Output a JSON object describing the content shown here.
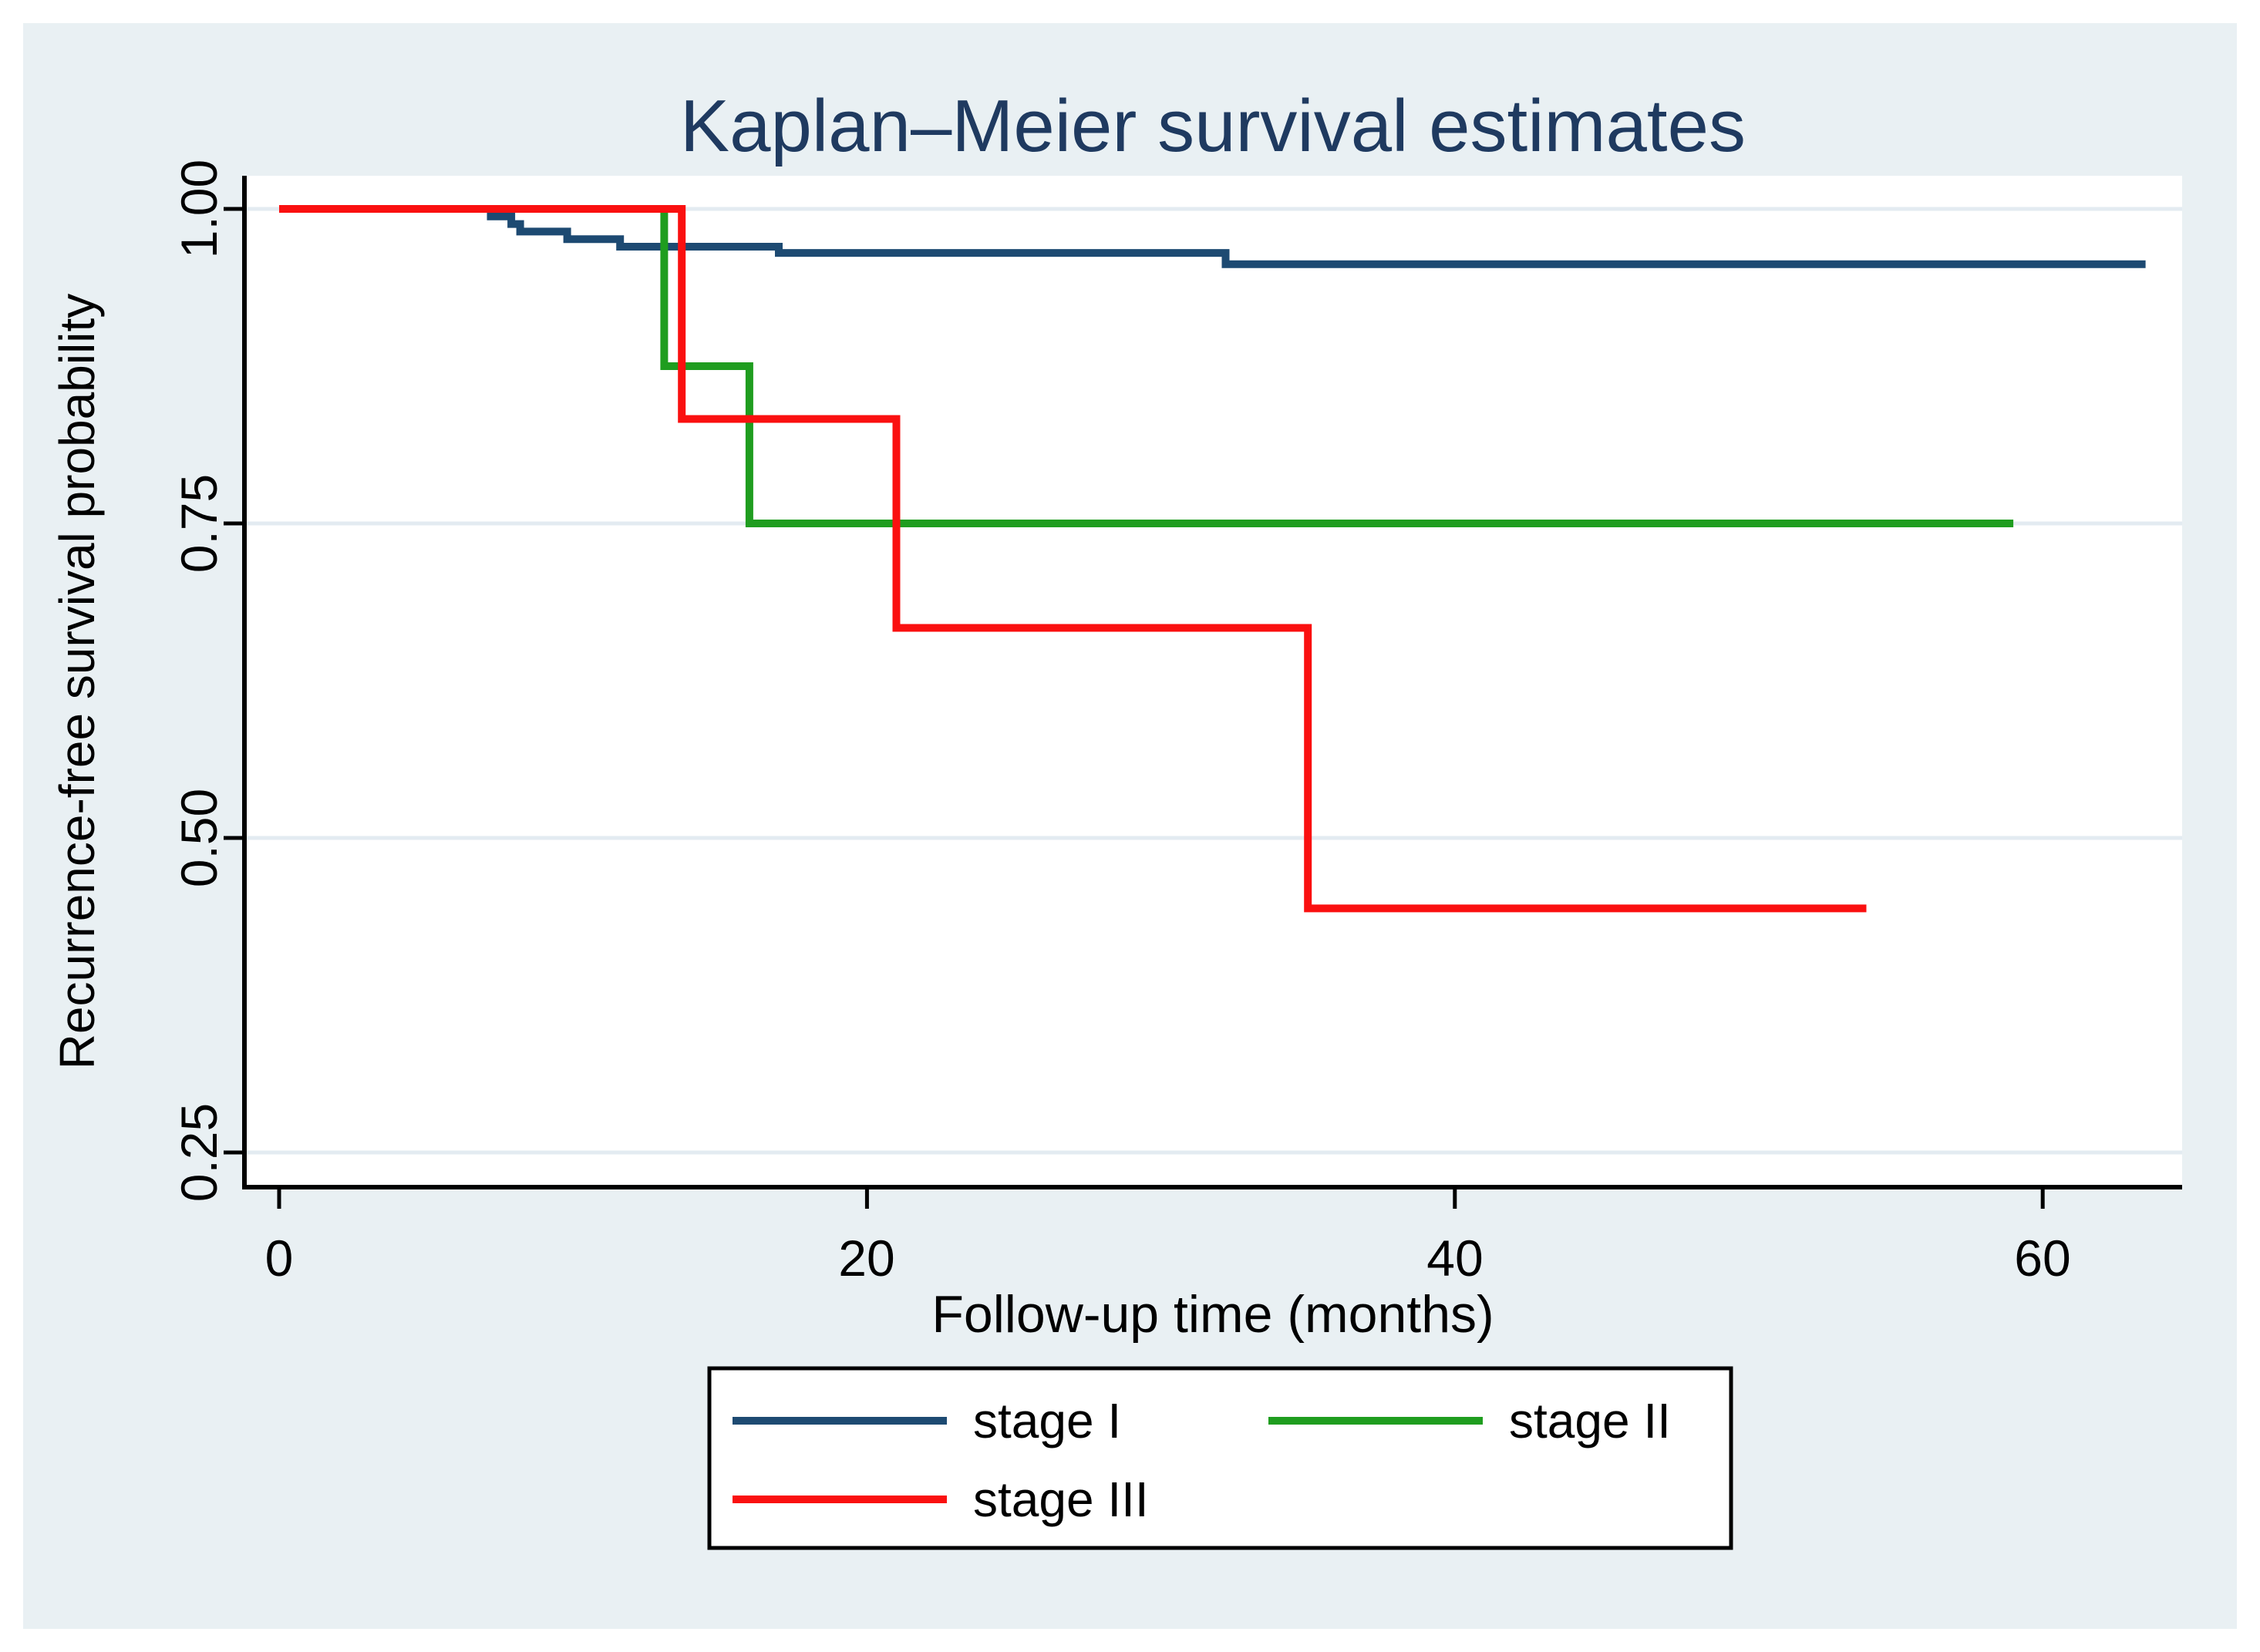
{
  "figure": {
    "background": "#e9f0f3",
    "outer_margin": "#ffffff",
    "plot_background": "#ffffff",
    "grid_color": "#e3ebf1",
    "axis_color": "#000000"
  },
  "title": {
    "text": "Kaplan–Meier survival estimates",
    "color": "#1f3a60"
  },
  "axes": {
    "x": {
      "label": "Follow-up time (months)",
      "ticks": [
        "0",
        "20",
        "40",
        "60"
      ],
      "tick_values": [
        0,
        20,
        40,
        60
      ],
      "range_shown": [
        0,
        64.7
      ]
    },
    "y": {
      "label": "Recurrence-free survival probability",
      "ticks": [
        "1.00",
        "0.75",
        "0.50",
        "0.25"
      ],
      "tick_values": [
        1.0,
        0.75,
        0.5,
        0.25
      ],
      "range_shown": [
        0.222,
        1.026
      ]
    }
  },
  "legend": {
    "position": "bottom-center",
    "items": [
      {
        "label": "stage I",
        "color": "#1d4a72"
      },
      {
        "label": "stage II",
        "color": "#1f9d1f"
      },
      {
        "label": "stage III",
        "color": "#fa1010"
      }
    ]
  },
  "chart_data": {
    "type": "line",
    "subtype": "kaplan-meier-step",
    "title": "Kaplan–Meier survival estimates",
    "xlabel": "Follow-up time (months)",
    "ylabel": "Recurrence-free survival probability",
    "xticks": [
      0,
      20,
      40,
      60
    ],
    "yticks": [
      0.25,
      0.5,
      0.75,
      1.0
    ],
    "xlim": [
      0,
      64.7
    ],
    "grid": "horizontal-only",
    "legend_position": "bottom-center",
    "series": [
      {
        "name": "stage I",
        "color": "#1d4a72",
        "steps": [
          [
            0,
            1.0
          ],
          [
            7.2,
            0.994
          ],
          [
            7.9,
            0.988
          ],
          [
            8.2,
            0.982
          ],
          [
            9.8,
            0.976
          ],
          [
            11.6,
            0.97
          ],
          [
            17.0,
            0.965
          ],
          [
            32.2,
            0.956
          ]
        ],
        "end_time": 63.5
      },
      {
        "name": "stage II",
        "color": "#1f9d1f",
        "steps": [
          [
            0,
            1.0
          ],
          [
            13.1,
            0.875
          ],
          [
            16.0,
            0.75
          ]
        ],
        "end_time": 59.0
      },
      {
        "name": "stage III",
        "color": "#fa1010",
        "steps": [
          [
            0,
            1.0
          ],
          [
            13.7,
            0.833
          ],
          [
            21.0,
            0.667
          ],
          [
            35.0,
            0.444
          ]
        ],
        "end_time": 54.0
      }
    ]
  }
}
